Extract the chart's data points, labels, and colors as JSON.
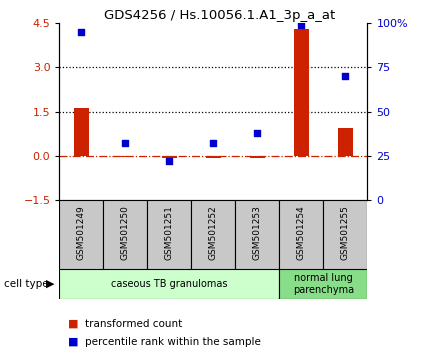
{
  "title": "GDS4256 / Hs.10056.1.A1_3p_a_at",
  "samples": [
    "GSM501249",
    "GSM501250",
    "GSM501251",
    "GSM501252",
    "GSM501253",
    "GSM501254",
    "GSM501255"
  ],
  "transformed_count": [
    1.62,
    -0.05,
    -0.07,
    -0.08,
    -0.07,
    4.3,
    0.95
  ],
  "percentile_rank": [
    95,
    32,
    22,
    32,
    38,
    99,
    70
  ],
  "ylim_left": [
    -1.5,
    4.5
  ],
  "ylim_right": [
    0,
    100
  ],
  "yticks_left": [
    -1.5,
    0,
    1.5,
    3.0,
    4.5
  ],
  "yticks_right": [
    0,
    25,
    50,
    75,
    100
  ],
  "ytick_labels_right": [
    "0",
    "25",
    "50",
    "75",
    "100%"
  ],
  "bar_color": "#cc2200",
  "scatter_color": "#0000cc",
  "dashed_line_color": "#cc2200",
  "cell_types": [
    {
      "label": "caseous TB granulomas",
      "start": 0,
      "end": 5,
      "color": "#ccffcc"
    },
    {
      "label": "normal lung\nparenchyma",
      "start": 5,
      "end": 7,
      "color": "#88dd88"
    }
  ],
  "legend_bar_label": "transformed count",
  "legend_scatter_label": "percentile rank within the sample",
  "cell_type_label": "cell type",
  "background_color": "#ffffff",
  "sample_box_color": "#c8c8c8"
}
